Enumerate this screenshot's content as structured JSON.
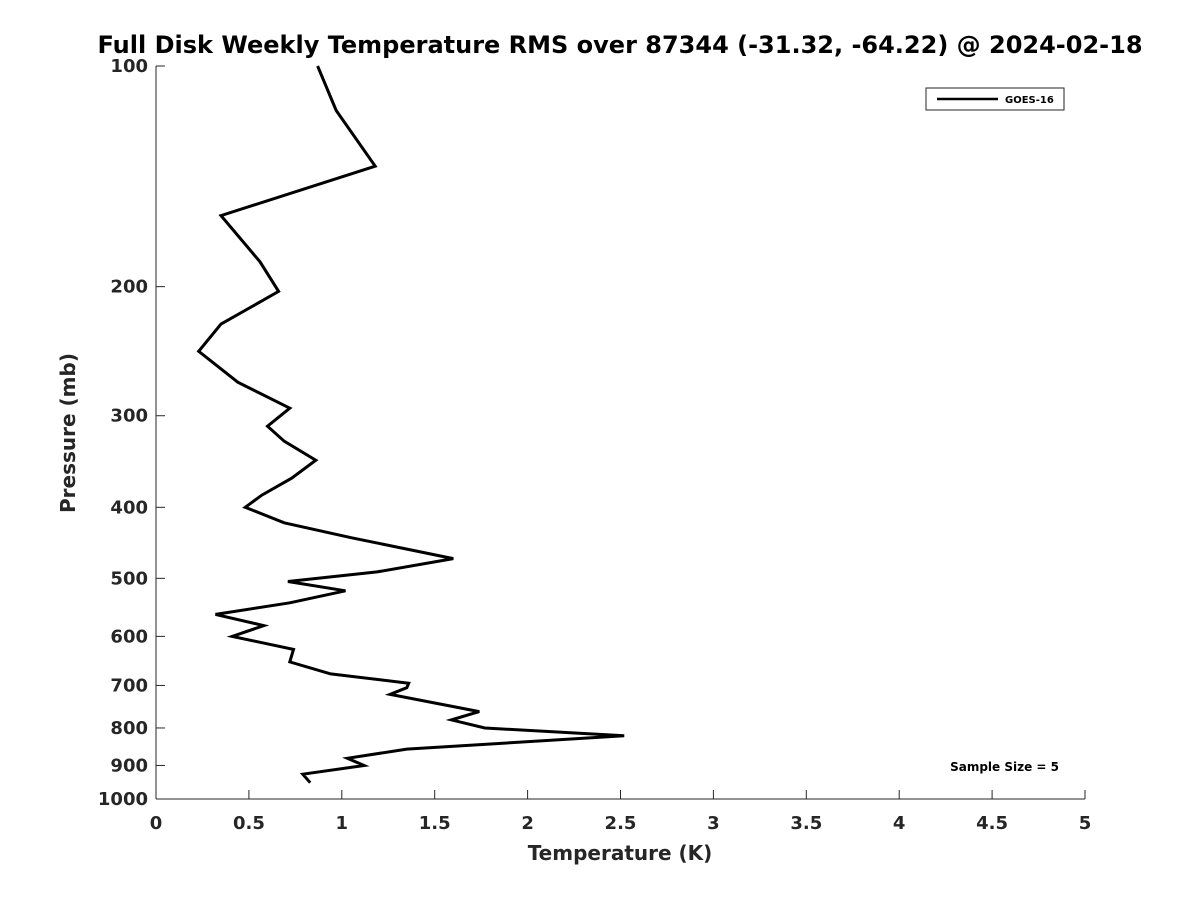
{
  "chart_data": {
    "type": "line",
    "title": "Full Disk Weekly Temperature RMS over 87344 (-31.32, -64.22) @ 2024-02-18",
    "xlabel": "Temperature (K)",
    "ylabel": "Pressure (mb)",
    "xlim": [
      0,
      5
    ],
    "ylim": [
      1000,
      100
    ],
    "y_scale": "log",
    "y_reversed": true,
    "x_ticks": [
      "0",
      "0.5",
      "1",
      "1.5",
      "2",
      "2.5",
      "3",
      "3.5",
      "4",
      "4.5",
      "5"
    ],
    "y_ticks": [
      "100",
      "200",
      "300",
      "400",
      "500",
      "600",
      "700",
      "800",
      "900",
      "1000"
    ],
    "grid": false,
    "legend_position": "top-right",
    "annotation": "Sample Size = 5",
    "series": [
      {
        "name": "GOES-16",
        "color": "#000000",
        "x": [
          0.87,
          0.97,
          1.18,
          0.35,
          0.56,
          0.66,
          0.35,
          0.23,
          0.44,
          0.72,
          0.6,
          0.69,
          0.86,
          0.73,
          0.57,
          0.48,
          0.69,
          1.05,
          1.6,
          1.19,
          0.71,
          1.02,
          0.72,
          0.32,
          0.58,
          0.41,
          0.74,
          0.72,
          0.94,
          1.36,
          1.35,
          1.26,
          1.74,
          1.59,
          1.77,
          2.52,
          1.35,
          1.03,
          1.12,
          0.79,
          0.83
        ],
        "y": [
          100,
          115,
          137,
          160,
          185,
          203,
          225,
          245,
          270,
          293,
          310,
          325,
          345,
          365,
          385,
          400,
          420,
          440,
          470,
          490,
          505,
          520,
          540,
          560,
          580,
          600,
          625,
          650,
          675,
          695,
          705,
          720,
          760,
          780,
          800,
          820,
          855,
          880,
          900,
          925,
          950
        ]
      }
    ]
  }
}
